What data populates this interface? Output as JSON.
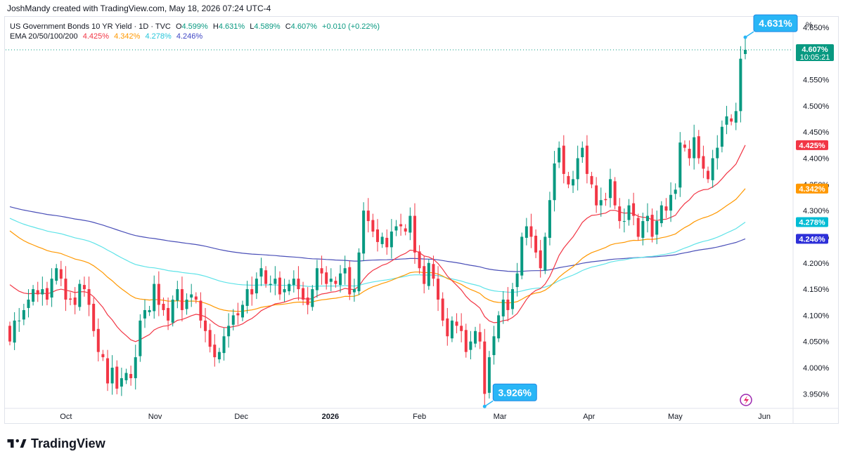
{
  "header": {
    "attribution": "JoshMandy created with TradingView.com, May 18, 2026 07:24 UTC-4"
  },
  "legend": {
    "title": "US Government Bonds 10 YR Yield · 1D · TVC",
    "ohlc": {
      "o_label": "O",
      "o": "4.599%",
      "h_label": "H",
      "h": "4.631%",
      "l_label": "L",
      "l": "4.589%",
      "c_label": "C",
      "c": "4.607%",
      "change": "+0.010 (+0.22%)"
    },
    "ema": {
      "label": "EMA 20/50/100/200",
      "v20": "4.425%",
      "v50": "4.342%",
      "v100": "4.278%",
      "v200": "4.246%"
    }
  },
  "colors": {
    "up": "#089981",
    "down": "#f23645",
    "ema20": "#f23645",
    "ema50": "#ff9800",
    "ema100": "#5ee3e8",
    "ema200": "#4a4fb8",
    "callout": "#29b6f6",
    "price_tag": "#089981"
  },
  "axis_unit": "%",
  "footer": {
    "brand": "TradingView"
  },
  "chart_data": {
    "type": "candlestick",
    "instrument": "US Government Bonds 10 YR Yield",
    "interval": "1D",
    "y_range": [
      3.925,
      4.67
    ],
    "y_ticks": [
      3.95,
      4.0,
      4.05,
      4.1,
      4.15,
      4.2,
      4.25,
      4.3,
      4.35,
      4.4,
      4.45,
      4.5,
      4.55,
      4.6,
      4.65
    ],
    "y_tick_labels": [
      "3.950%",
      "4.000%",
      "4.050%",
      "4.100%",
      "4.150%",
      "4.200%",
      "4.250%",
      "4.300%",
      "4.350%",
      "4.400%",
      "4.450%",
      "4.500%",
      "4.550%",
      "4.600%",
      "4.650%"
    ],
    "x_start": "2025-09-10",
    "x_end": "2026-06-11",
    "x_ticks": [
      {
        "date": "2025-10-01",
        "label": "Oct",
        "bold": false
      },
      {
        "date": "2025-11-01",
        "label": "Nov",
        "bold": false
      },
      {
        "date": "2025-12-01",
        "label": "Dec",
        "bold": false
      },
      {
        "date": "2026-01-01",
        "label": "2026",
        "bold": true
      },
      {
        "date": "2026-02-01",
        "label": "Feb",
        "bold": false
      },
      {
        "date": "2026-03-01",
        "label": "Mar",
        "bold": false
      },
      {
        "date": "2026-04-01",
        "label": "Apr",
        "bold": false
      },
      {
        "date": "2026-05-01",
        "label": "May",
        "bold": false
      },
      {
        "date": "2026-06-01",
        "label": "Jun",
        "bold": false
      }
    ],
    "closes": [
      4.05,
      4.09,
      4.09,
      4.11,
      4.13,
      4.15,
      4.14,
      4.15,
      4.13,
      4.17,
      4.19,
      4.17,
      4.13,
      4.13,
      4.12,
      4.16,
      4.15,
      4.12,
      4.07,
      4.03,
      4.02,
      3.97,
      4.0,
      3.96,
      3.98,
      3.99,
      3.98,
      4.02,
      4.09,
      4.11,
      4.11,
      4.16,
      4.12,
      4.11,
      4.09,
      4.13,
      4.15,
      4.11,
      4.13,
      4.14,
      4.13,
      4.09,
      4.07,
      4.04,
      4.02,
      4.03,
      4.06,
      4.08,
      4.1,
      4.1,
      4.12,
      4.15,
      4.14,
      4.17,
      4.19,
      4.16,
      4.16,
      4.17,
      4.14,
      4.15,
      4.16,
      4.17,
      4.15,
      4.13,
      4.12,
      4.15,
      4.19,
      4.18,
      4.16,
      4.17,
      4.16,
      4.18,
      4.19,
      4.14,
      4.15,
      4.22,
      4.3,
      4.28,
      4.26,
      4.24,
      4.25,
      4.23,
      4.26,
      4.27,
      4.27,
      4.26,
      4.29,
      4.22,
      4.19,
      4.16,
      4.2,
      4.17,
      4.13,
      4.09,
      4.06,
      4.09,
      4.08,
      4.07,
      4.03,
      4.05,
      4.07,
      4.05,
      3.95,
      4.02,
      4.06,
      4.1,
      4.13,
      4.11,
      4.15,
      4.18,
      4.25,
      4.27,
      4.25,
      4.22,
      4.19,
      4.25,
      4.32,
      4.39,
      4.42,
      4.37,
      4.35,
      4.36,
      4.4,
      4.42,
      4.37,
      4.35,
      4.31,
      4.32,
      4.32,
      4.36,
      4.31,
      4.28,
      4.28,
      4.31,
      4.29,
      4.25,
      4.28,
      4.29,
      4.25,
      4.28,
      4.31,
      4.3,
      4.33,
      4.34,
      4.43,
      4.42,
      4.4,
      4.44,
      4.4,
      4.38,
      4.36,
      4.4,
      4.42,
      4.46,
      4.48,
      4.47,
      4.49,
      4.59,
      4.607
    ],
    "ema_last": {
      "ema20": 4.425,
      "ema50": 4.342,
      "ema100": 4.278,
      "ema200": 4.246
    },
    "current": {
      "value": 4.607,
      "label": "4.607%",
      "countdown": "10:05:21"
    },
    "callouts": [
      {
        "label": "4.631%",
        "value": 4.631,
        "kind": "high"
      },
      {
        "label": "3.926%",
        "value": 3.926,
        "kind": "low"
      }
    ]
  }
}
